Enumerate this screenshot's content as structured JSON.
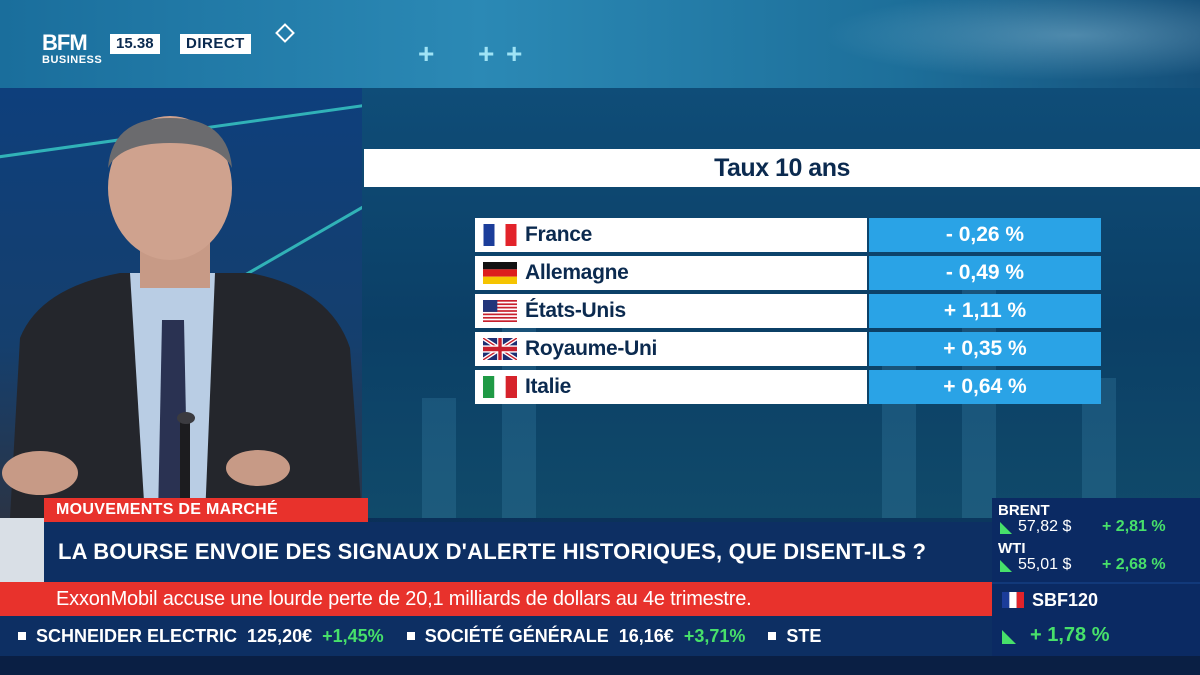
{
  "branding": {
    "logo_line1": "BFM",
    "logo_line2": "BUSINESS",
    "time": "15.38",
    "live_label": "DIRECT"
  },
  "graphic": {
    "title": "Taux 10 ans",
    "rows": [
      {
        "country": "France",
        "flag": "flag-france-icon",
        "value": "- 0,26 %"
      },
      {
        "country": "Allemagne",
        "flag": "flag-germany-icon",
        "value": "- 0,49 %"
      },
      {
        "country": "États-Unis",
        "flag": "flag-usa-icon",
        "value": "+ 1,11 %"
      },
      {
        "country": "Royaume-Uni",
        "flag": "flag-uk-icon",
        "value": "+ 0,35 %"
      },
      {
        "country": "Italie",
        "flag": "flag-italy-icon",
        "value": "+ 0,64 %"
      }
    ]
  },
  "lower_third": {
    "section": "MOUVEMENTS DE MARCHÉ",
    "headline": "LA BOURSE ENVOIE DES SIGNAUX D'ALERTE HISTORIQUES, QUE DISENT-ILS ?",
    "news": "ExxonMobil accuse une lourde perte de 20,1 milliards de dollars au 4e trimestre."
  },
  "ticker": [
    {
      "name": "SCHNEIDER ELECTRIC",
      "price": "125,20€",
      "change": "+1,45%"
    },
    {
      "name": "SOCIÉTÉ GÉNÉRALE",
      "price": "16,16€",
      "change": "+3,71%"
    },
    {
      "name": "STE",
      "price": "",
      "change": ""
    }
  ],
  "markets": {
    "brent": {
      "label": "BRENT",
      "value": "57,82 $",
      "change": "+ 2,81 %"
    },
    "wti": {
      "label": "WTI",
      "value": "55,01 $",
      "change": "+ 2,68 %"
    },
    "index": {
      "label": "SBF120",
      "change": "+ 1,78 %"
    }
  },
  "colors": {
    "red": "#e8322c",
    "navy": "#0d2f63",
    "rate_blue": "#2aa3e6",
    "up_green": "#47e06a"
  }
}
